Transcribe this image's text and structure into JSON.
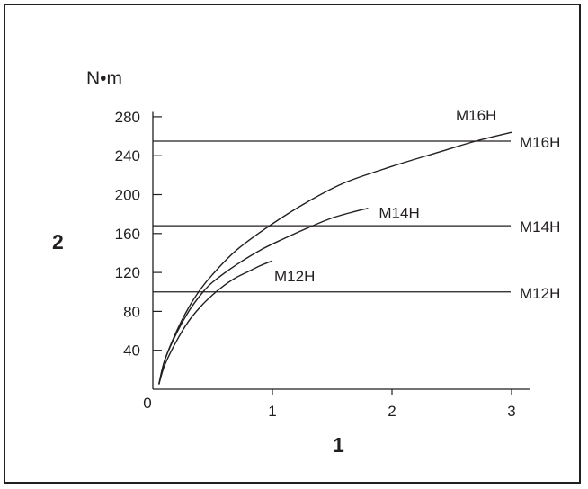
{
  "chart_data": {
    "type": "line",
    "title": "",
    "ylabel_unit": "N•m",
    "ylabel": "2",
    "xlabel": "1",
    "xlim": [
      0,
      3.15
    ],
    "ylim": [
      0,
      285
    ],
    "x_ticks": [
      0,
      1,
      2,
      3
    ],
    "x_tick_labels": [
      "0",
      "1",
      "2",
      "3"
    ],
    "y_ticks": [
      40,
      80,
      120,
      160,
      200,
      240,
      280
    ],
    "y_tick_labels": [
      "40",
      "80",
      "120",
      "160",
      "200",
      "240",
      "280"
    ],
    "grid": false,
    "color": "#231f20",
    "curves": [
      {
        "name": "M12H",
        "points": [
          [
            0.05,
            5
          ],
          [
            0.1,
            25
          ],
          [
            0.2,
            50
          ],
          [
            0.3,
            70
          ],
          [
            0.4,
            85
          ],
          [
            0.5,
            97
          ],
          [
            0.6,
            107
          ],
          [
            0.7,
            115
          ],
          [
            0.8,
            121
          ],
          [
            0.9,
            127
          ],
          [
            1.0,
            132
          ]
        ]
      },
      {
        "name": "M14H",
        "points": [
          [
            0.05,
            5
          ],
          [
            0.1,
            30
          ],
          [
            0.2,
            58
          ],
          [
            0.3,
            80
          ],
          [
            0.4,
            97
          ],
          [
            0.5,
            110
          ],
          [
            0.7,
            128
          ],
          [
            0.9,
            143
          ],
          [
            1.1,
            155
          ],
          [
            1.3,
            166
          ],
          [
            1.5,
            176
          ],
          [
            1.7,
            183
          ],
          [
            1.8,
            186
          ]
        ]
      },
      {
        "name": "M16H",
        "points": [
          [
            0.05,
            5
          ],
          [
            0.1,
            30
          ],
          [
            0.2,
            60
          ],
          [
            0.3,
            84
          ],
          [
            0.4,
            103
          ],
          [
            0.5,
            118
          ],
          [
            0.7,
            143
          ],
          [
            1.0,
            170
          ],
          [
            1.3,
            193
          ],
          [
            1.6,
            212
          ],
          [
            2.0,
            229
          ],
          [
            2.4,
            244
          ],
          [
            2.7,
            255
          ],
          [
            3.0,
            264
          ]
        ]
      }
    ],
    "reference_lines": [
      {
        "name": "M16H",
        "y": 255
      },
      {
        "name": "M14H",
        "y": 168
      },
      {
        "name": "M12H",
        "y": 100
      }
    ]
  }
}
